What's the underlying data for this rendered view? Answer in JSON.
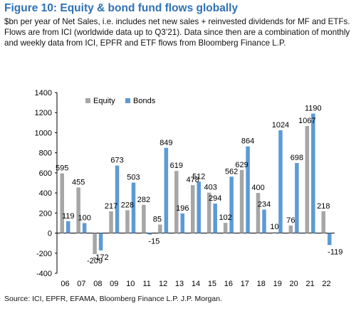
{
  "title": "Figure 10: Equity & bond fund flows globally",
  "subtitle": "$bn per year of Net Sales, i.e. includes net new sales + reinvested dividends for MF and ETFs. Flows are from ICI (worldwide data up to Q3’21). Data since then are a combination of monthly and weekly data from ICI, EPFR and ETF flows from Bloomberg Finance L.P.",
  "source": "Source: ICI, EPFR, EFAMA, Bloomberg Finance L.P. J.P. Morgan.",
  "colors": {
    "equity": "#a6a6a6",
    "bonds": "#5b9bd5",
    "axis": "#000000"
  },
  "chart_data": {
    "type": "bar",
    "categories": [
      "06",
      "07",
      "08",
      "09",
      "10",
      "11",
      "12",
      "13",
      "14",
      "15",
      "16",
      "17",
      "18",
      "19",
      "20",
      "21",
      "22"
    ],
    "series": [
      {
        "name": "Equity",
        "values": [
          595,
          455,
          -209,
          217,
          228,
          282,
          85,
          619,
          478,
          403,
          102,
          629,
          400,
          10,
          76,
          1067,
          218
        ]
      },
      {
        "name": "Bonds",
        "values": [
          119,
          100,
          -172,
          673,
          503,
          -15,
          849,
          196,
          512,
          294,
          562,
          864,
          234,
          1024,
          698,
          1190,
          -119
        ]
      }
    ],
    "y_ticks": [
      "1400",
      "1200",
      "1000",
      "800",
      "600",
      "400",
      "200",
      "0",
      "-200",
      "-400"
    ],
    "ylim": [
      -400,
      1400
    ],
    "legend_position": "top-left",
    "grid": false
  }
}
